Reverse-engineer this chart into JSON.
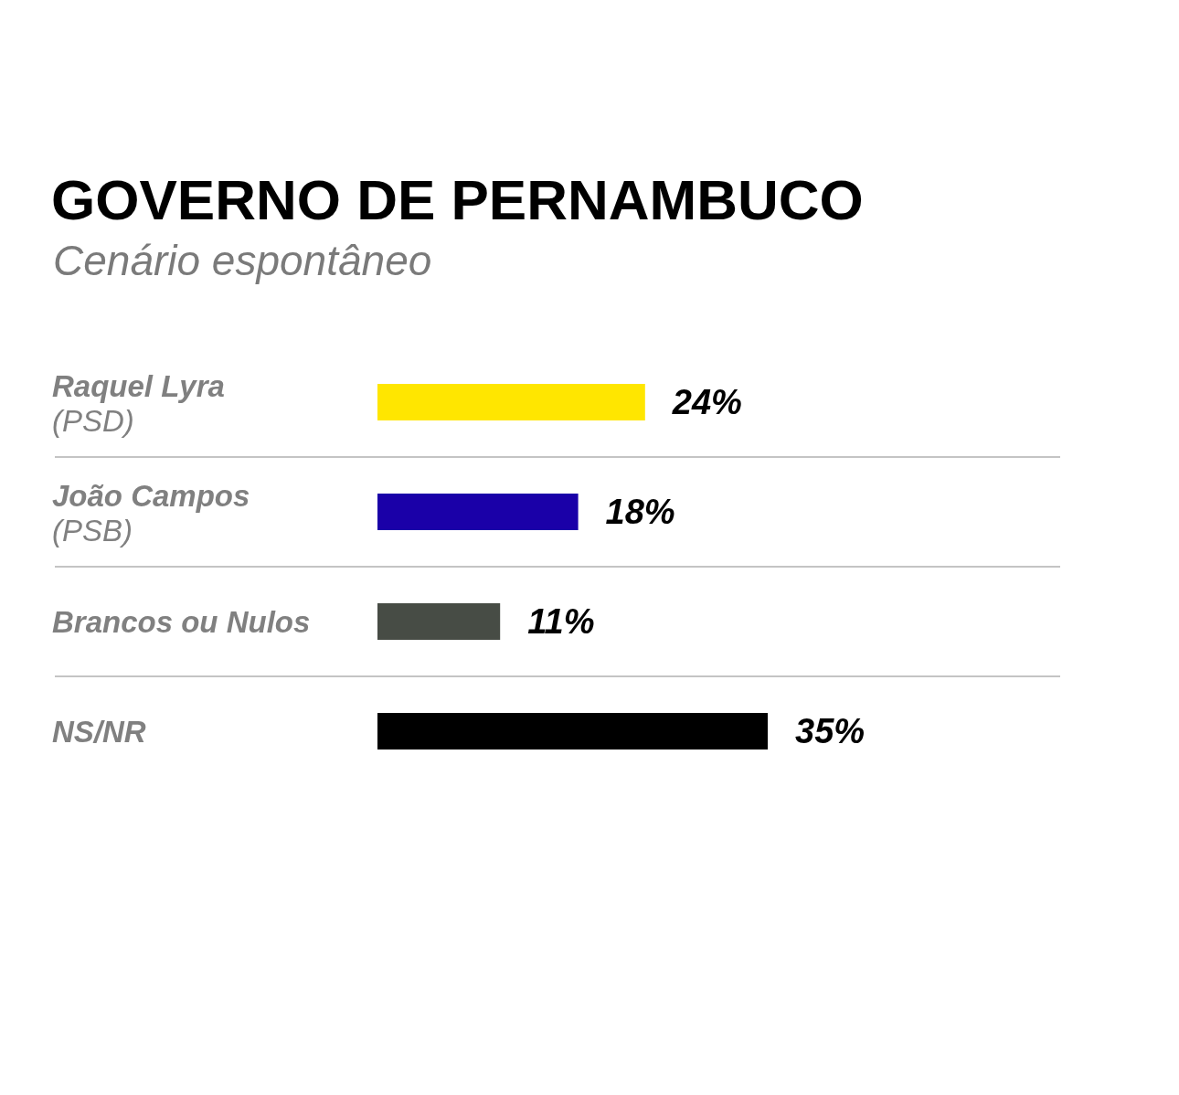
{
  "chart_data": {
    "type": "bar",
    "orientation": "horizontal",
    "title": "GOVERNO DE PERNAMBUCO",
    "subtitle": "Cenário espontâneo",
    "categories": [
      "Raquel Lyra\n(PSD)",
      "João Campos\n(PSB)",
      "Brancos ou Nulos",
      "NS/NR"
    ],
    "values": [
      24,
      18,
      11,
      35
    ],
    "colors": [
      "#ffe600",
      "#1a00a8",
      "#474c45",
      "#000000"
    ],
    "value_labels": [
      "24%",
      "18%",
      "11%",
      "35%"
    ],
    "grid": "y",
    "tick_labels": "y"
  }
}
